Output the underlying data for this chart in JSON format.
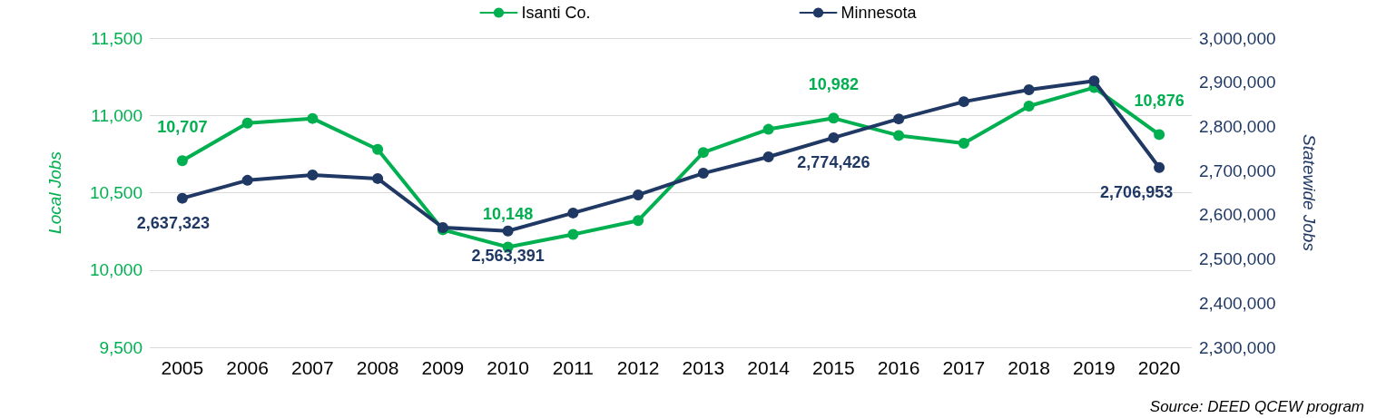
{
  "chart_data": {
    "type": "line",
    "ylabel": "Local Jobs",
    "y2label": "Statewide Jobs",
    "categories": [
      "2005",
      "2006",
      "2007",
      "2008",
      "2009",
      "2010",
      "2011",
      "2012",
      "2013",
      "2014",
      "2015",
      "2016",
      "2017",
      "2018",
      "2019",
      "2020"
    ],
    "series": [
      {
        "name": "Isanti Co.",
        "color": "#00b050",
        "values": [
          10707,
          10950,
          10980,
          10780,
          10260,
          10148,
          10230,
          10320,
          10760,
          10910,
          10982,
          10870,
          10820,
          11060,
          11180,
          10876
        ],
        "value_labels": [
          "10,707",
          null,
          null,
          null,
          null,
          "10,148",
          null,
          null,
          null,
          null,
          "10,982",
          null,
          null,
          null,
          null,
          "10,876"
        ]
      },
      {
        "name": "Minnesota",
        "color": "#203864",
        "axis": "y2",
        "values": [
          2637323,
          2678000,
          2690000,
          2682000,
          2571000,
          2563391,
          2604000,
          2645000,
          2694000,
          2731000,
          2774426,
          2817000,
          2856000,
          2883000,
          2903000,
          2706953
        ],
        "value_labels": [
          "2,637,323",
          null,
          null,
          null,
          null,
          "2,563,391",
          null,
          null,
          null,
          null,
          "2,774,426",
          null,
          null,
          null,
          null,
          "2,706,953"
        ]
      }
    ],
    "ylim": [
      9500,
      11500
    ],
    "yticks": [
      {
        "value": 9500,
        "label": "9,500"
      },
      {
        "value": 10000,
        "label": "10,000"
      },
      {
        "value": 10500,
        "label": "10,500"
      },
      {
        "value": 11000,
        "label": "11,000"
      },
      {
        "value": 11500,
        "label": "11,500"
      }
    ],
    "y2lim": [
      2300000,
      3000000
    ],
    "y2ticks": [
      {
        "value": 2300000,
        "label": "2,300,000"
      },
      {
        "value": 2400000,
        "label": "2,400,000"
      },
      {
        "value": 2500000,
        "label": "2,500,000"
      },
      {
        "value": 2600000,
        "label": "2,600,000"
      },
      {
        "value": 2700000,
        "label": "2,700,000"
      },
      {
        "value": 2800000,
        "label": "2,800,000"
      },
      {
        "value": 2900000,
        "label": "2,900,000"
      },
      {
        "value": 3000000,
        "label": "3,000,000"
      }
    ],
    "grid": "y",
    "legend": "top",
    "marker": "circle",
    "line_style": "solid",
    "annotations": [
      "Source: DEED QCEW program"
    ]
  }
}
